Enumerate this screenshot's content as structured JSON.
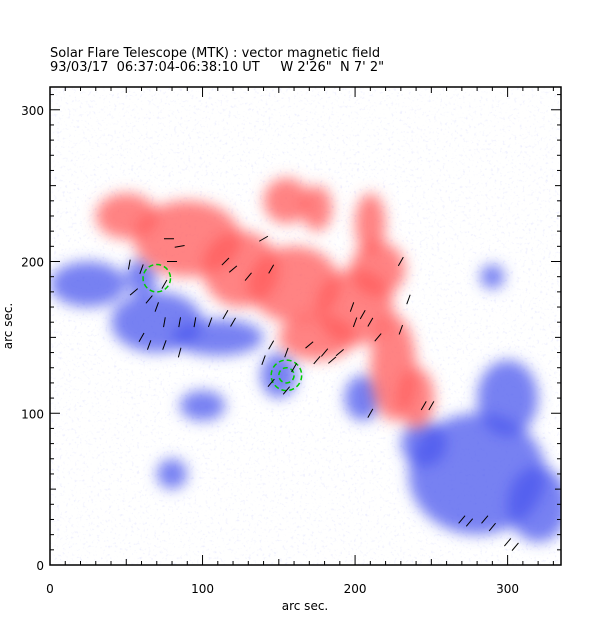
{
  "chart_data": {
    "type": "heatmap",
    "title": "Solar Flare Telescope (MTK) : vector magnetic field",
    "subtitle": "93/03/17  06:37:04-06:38:10 UT     W 2'26\"  N 7' 2\"",
    "xlabel": "arc sec.",
    "ylabel": "arc sec.",
    "xlim": [
      0,
      335
    ],
    "ylim": [
      0,
      315
    ],
    "xticks": [
      "0",
      "100",
      "200",
      "300"
    ],
    "yticks": [
      "0",
      "100",
      "200",
      "300"
    ],
    "colors": {
      "positive": "#ff5a5a",
      "negative": "#4a55ee",
      "vector": "#000000",
      "contour": "#00cc00"
    },
    "positive_regions": [
      [
        50,
        230,
        20,
        15
      ],
      [
        90,
        215,
        35,
        25
      ],
      [
        125,
        195,
        25,
        25
      ],
      [
        160,
        185,
        30,
        25
      ],
      [
        200,
        170,
        25,
        25
      ],
      [
        225,
        130,
        15,
        35
      ],
      [
        240,
        110,
        12,
        20
      ],
      [
        175,
        150,
        25,
        15
      ],
      [
        155,
        240,
        15,
        15
      ],
      [
        210,
        225,
        10,
        20
      ],
      [
        175,
        235,
        10,
        15
      ],
      [
        215,
        195,
        18,
        18
      ]
    ],
    "negative_regions": [
      [
        25,
        185,
        25,
        15
      ],
      [
        70,
        160,
        30,
        20
      ],
      [
        110,
        150,
        30,
        12
      ],
      [
        150,
        125,
        12,
        15
      ],
      [
        205,
        110,
        12,
        15
      ],
      [
        280,
        60,
        45,
        40
      ],
      [
        320,
        40,
        20,
        25
      ],
      [
        300,
        110,
        20,
        25
      ],
      [
        245,
        80,
        15,
        15
      ],
      [
        100,
        105,
        15,
        10
      ],
      [
        80,
        60,
        10,
        10
      ],
      [
        290,
        190,
        8,
        8
      ],
      [
        60,
        190,
        10,
        12
      ]
    ],
    "vectors": [
      [
        52,
        198,
        80
      ],
      [
        60,
        195,
        70
      ],
      [
        75,
        185,
        60
      ],
      [
        80,
        200,
        0
      ],
      [
        78,
        215,
        0
      ],
      [
        85,
        210,
        10
      ],
      [
        55,
        180,
        40
      ],
      [
        65,
        175,
        50
      ],
      [
        70,
        170,
        70
      ],
      [
        75,
        160,
        80
      ],
      [
        85,
        160,
        80
      ],
      [
        95,
        160,
        80
      ],
      [
        105,
        160,
        70
      ],
      [
        115,
        165,
        60
      ],
      [
        120,
        160,
        60
      ],
      [
        65,
        145,
        70
      ],
      [
        75,
        145,
        70
      ],
      [
        85,
        140,
        75
      ],
      [
        60,
        150,
        60
      ],
      [
        140,
        135,
        70
      ],
      [
        145,
        145,
        60
      ],
      [
        155,
        140,
        70
      ],
      [
        160,
        130,
        60
      ],
      [
        145,
        120,
        50
      ],
      [
        155,
        115,
        50
      ],
      [
        170,
        145,
        40
      ],
      [
        180,
        140,
        50
      ],
      [
        190,
        140,
        40
      ],
      [
        175,
        135,
        50
      ],
      [
        185,
        135,
        40
      ],
      [
        198,
        170,
        70
      ],
      [
        205,
        165,
        60
      ],
      [
        200,
        160,
        70
      ],
      [
        210,
        160,
        60
      ],
      [
        215,
        150,
        50
      ],
      [
        230,
        155,
        70
      ],
      [
        235,
        175,
        70
      ],
      [
        120,
        195,
        40
      ],
      [
        130,
        190,
        50
      ],
      [
        145,
        195,
        60
      ],
      [
        115,
        200,
        45
      ],
      [
        210,
        100,
        60
      ],
      [
        245,
        105,
        60
      ],
      [
        250,
        105,
        60
      ],
      [
        270,
        30,
        50
      ],
      [
        275,
        28,
        50
      ],
      [
        285,
        30,
        50
      ],
      [
        290,
        25,
        50
      ],
      [
        300,
        15,
        50
      ],
      [
        305,
        12,
        50
      ],
      [
        140,
        215,
        30
      ],
      [
        230,
        200,
        60
      ]
    ],
    "contours": [
      [
        70,
        189,
        9
      ],
      [
        155,
        125,
        10
      ],
      [
        155,
        125,
        5
      ]
    ]
  }
}
